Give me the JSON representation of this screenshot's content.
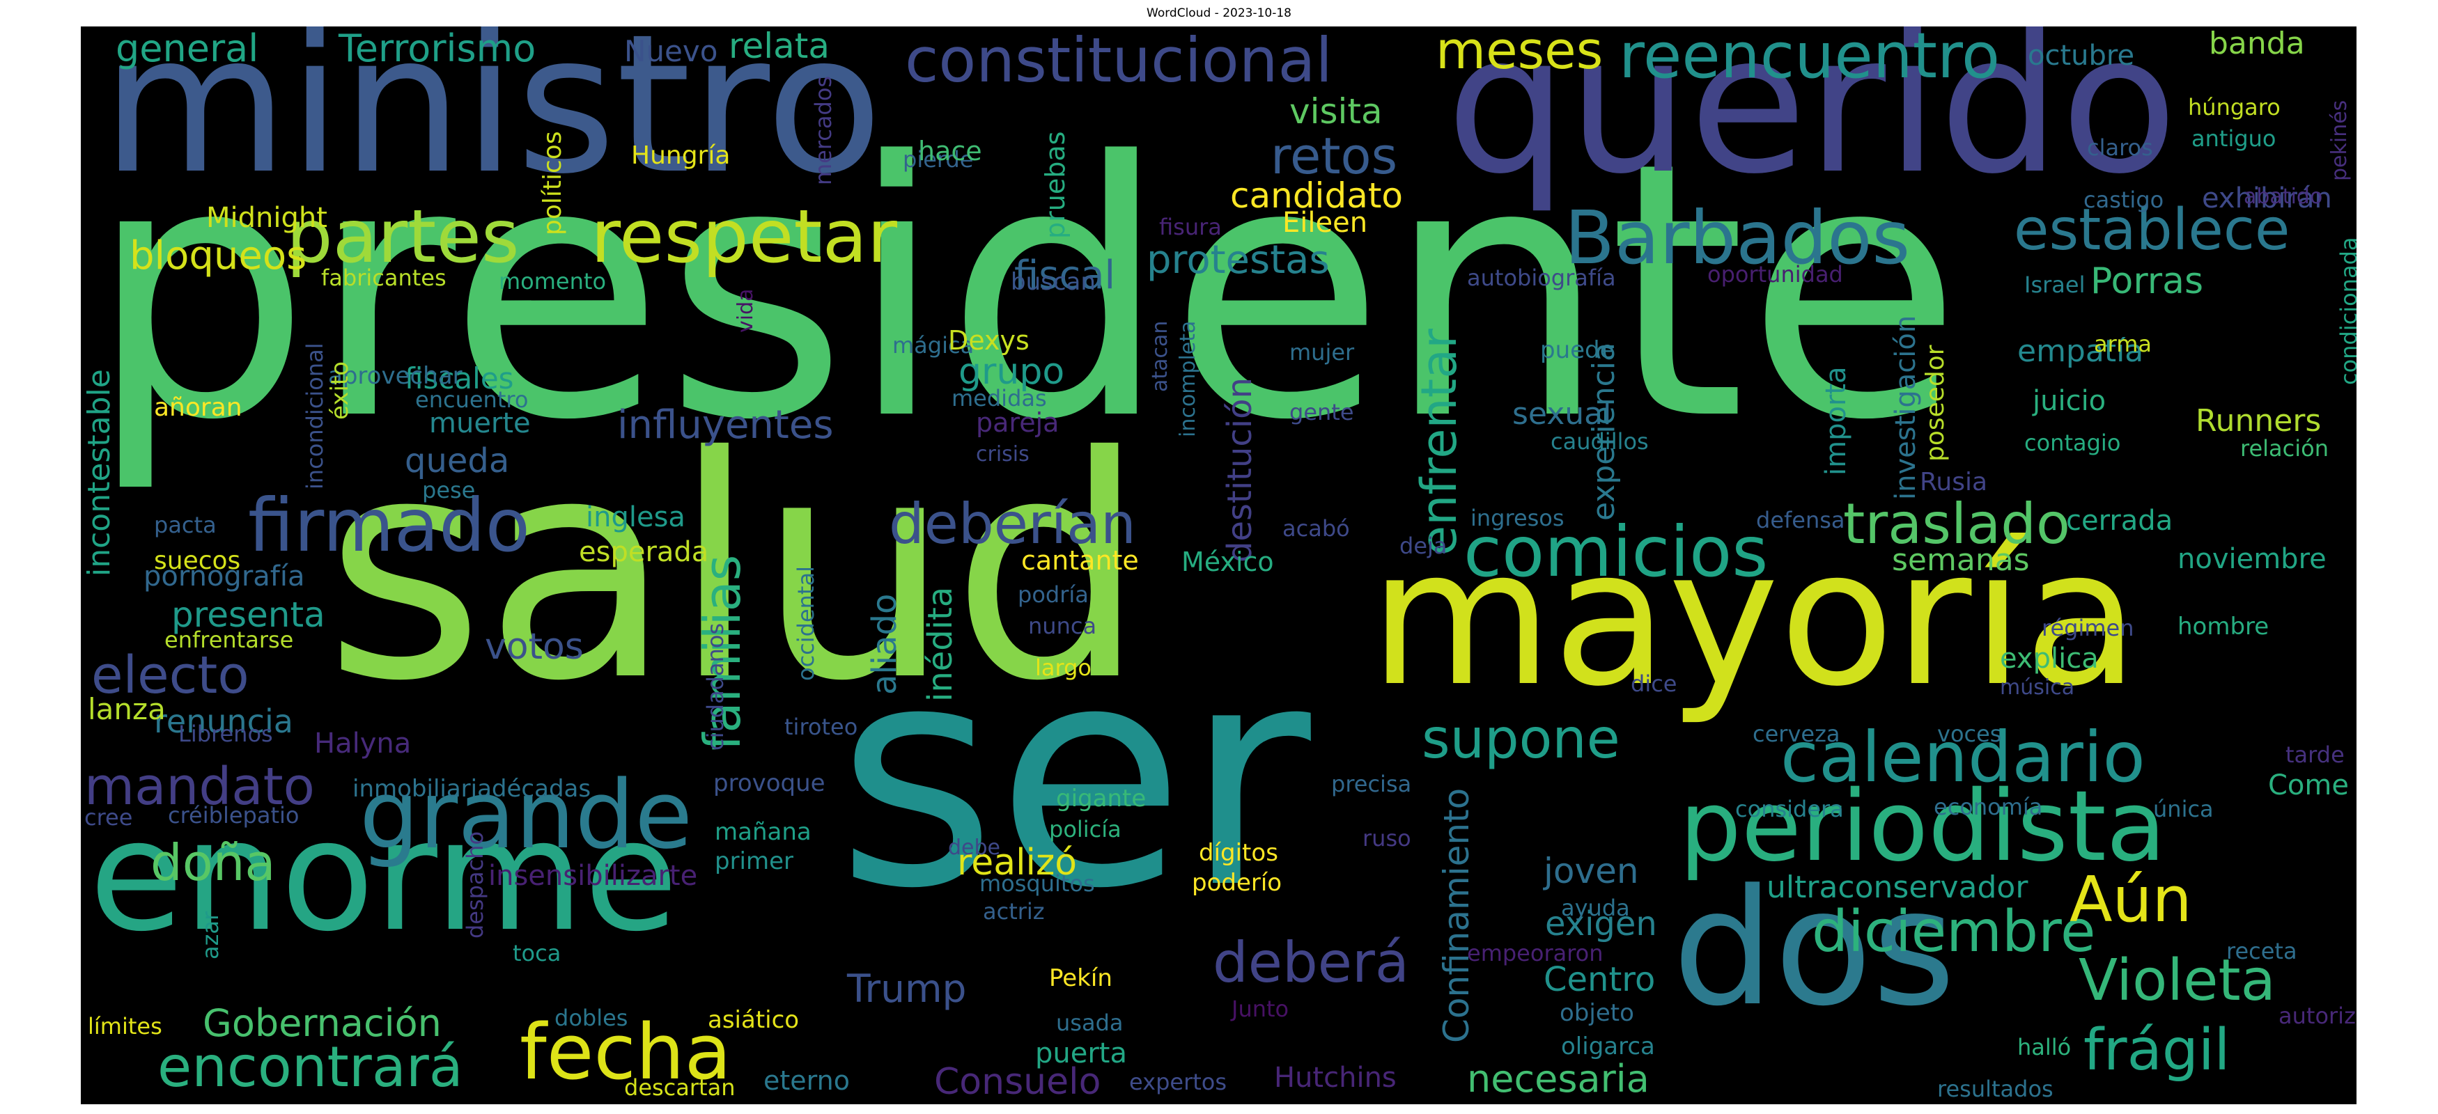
{
  "title": "WordCloud - 2023-10-18",
  "background": "#000000",
  "colormap": "viridis",
  "words": [
    {
      "text": "presidente",
      "color": "#4bc46a"
    },
    {
      "text": "ser",
      "color": "#1f8f8c"
    },
    {
      "text": "salud",
      "color": "#86d549"
    },
    {
      "text": "ministro",
      "color": "#3d5a8c"
    },
    {
      "text": "querido",
      "color": "#414487"
    },
    {
      "text": "mayoría",
      "color": "#d1e11c"
    },
    {
      "text": "enorme",
      "color": "#25a584"
    },
    {
      "text": "dos",
      "color": "#2c7a8e"
    },
    {
      "text": "periodista",
      "color": "#29af7f"
    },
    {
      "text": "grande",
      "color": "#2a7b8e"
    },
    {
      "text": "partes",
      "color": "#9fda3a"
    },
    {
      "text": "respetar",
      "color": "#c2df23"
    },
    {
      "text": "Barbados",
      "color": "#2b758e"
    },
    {
      "text": "calendario",
      "color": "#21918c"
    },
    {
      "text": "comicios",
      "color": "#20a486"
    },
    {
      "text": "firmado",
      "color": "#3a548c"
    },
    {
      "text": "fecha",
      "color": "#dde318"
    },
    {
      "text": "constitucional",
      "color": "#3e4a89"
    },
    {
      "text": "reencuentro",
      "color": "#21918c"
    },
    {
      "text": "establece",
      "color": "#2a788e"
    },
    {
      "text": "diciembre",
      "color": "#2db27d"
    },
    {
      "text": "Violeta",
      "color": "#35b779"
    },
    {
      "text": "frágil",
      "color": "#22a884"
    },
    {
      "text": "Aún",
      "color": "#e4e419"
    },
    {
      "text": "encontrará",
      "color": "#2ab07f"
    },
    {
      "text": "deberían",
      "color": "#3b528b"
    },
    {
      "text": "traslado",
      "color": "#54c568"
    },
    {
      "text": "mandato",
      "color": "#433e85"
    },
    {
      "text": "electo",
      "color": "#3e4c8a"
    },
    {
      "text": "doña",
      "color": "#58c765"
    },
    {
      "text": "familias",
      "color": "#2ab07f"
    },
    {
      "text": "deberá",
      "color": "#414487"
    },
    {
      "text": "supone",
      "color": "#1f9e89"
    },
    {
      "text": "enfrentar",
      "color": "#22a785"
    },
    {
      "text": "meses",
      "color": "#d8e219"
    },
    {
      "text": "retos",
      "color": "#375b8d"
    },
    {
      "text": "influyentes",
      "color": "#3b528b"
    },
    {
      "text": "Confinamiento",
      "color": "#2c728e"
    },
    {
      "text": "destitución",
      "color": "#424086"
    },
    {
      "text": "Trump",
      "color": "#3b518b"
    },
    {
      "text": "Consuelo",
      "color": "#482878"
    },
    {
      "text": "Gobernación",
      "color": "#48c16e"
    },
    {
      "text": "necesaria",
      "color": "#42be71"
    },
    {
      "text": "realizó",
      "color": "#e1e418"
    },
    {
      "text": "exigen",
      "color": "#26828e"
    },
    {
      "text": "Centro",
      "color": "#20928c"
    },
    {
      "text": "joven",
      "color": "#2e6e8e"
    },
    {
      "text": "ultraconservador",
      "color": "#1fa088"
    },
    {
      "text": "semanas",
      "color": "#5ec962"
    },
    {
      "text": "cerrada",
      "color": "#22a884"
    },
    {
      "text": "noviembre",
      "color": "#21a685"
    },
    {
      "text": "Runners",
      "color": "#b0dd2f"
    },
    {
      "text": "juicio",
      "color": "#2ab07f"
    },
    {
      "text": "empatía",
      "color": "#23898e"
    },
    {
      "text": "Porras",
      "color": "#38b977"
    },
    {
      "text": "sexual",
      "color": "#2e6f8e"
    },
    {
      "text": "experiencia",
      "color": "#2a788e"
    },
    {
      "text": "investigación",
      "color": "#2c738e"
    },
    {
      "text": "importa",
      "color": "#21918c"
    },
    {
      "text": "poseedor",
      "color": "#b8de29"
    },
    {
      "text": "protestas",
      "color": "#26828e"
    },
    {
      "text": "fiscal",
      "color": "#31668e"
    },
    {
      "text": "grupo",
      "color": "#1f9a8a"
    },
    {
      "text": "candidato",
      "color": "#fde725"
    },
    {
      "text": "visita",
      "color": "#5ec962"
    },
    {
      "text": "bloqueos",
      "color": "#d5e21a"
    },
    {
      "text": "fiscales",
      "color": "#1f9e89"
    },
    {
      "text": "queda",
      "color": "#355f8d"
    },
    {
      "text": "muerte",
      "color": "#24878e"
    },
    {
      "text": "presenta",
      "color": "#1f9a8a"
    },
    {
      "text": "votos",
      "color": "#3b528b"
    },
    {
      "text": "renuncia",
      "color": "#2a778e"
    },
    {
      "text": "lanza",
      "color": "#b5de2b"
    },
    {
      "text": "Halyna",
      "color": "#472a7a"
    },
    {
      "text": "insensibilizarte",
      "color": "#482173"
    },
    {
      "text": "inmobiliariadécadas",
      "color": "#2c738e"
    },
    {
      "text": "general",
      "color": "#21a685"
    },
    {
      "text": "Terrorismo",
      "color": "#1fa088"
    },
    {
      "text": "Nuevo",
      "color": "#3b528b"
    },
    {
      "text": "relata",
      "color": "#27ad81"
    },
    {
      "text": "octubre",
      "color": "#29798e"
    },
    {
      "text": "banda",
      "color": "#86d549"
    },
    {
      "text": "húngaro",
      "color": "#c2df23"
    },
    {
      "text": "antiguo",
      "color": "#1f9e89"
    },
    {
      "text": "claros",
      "color": "#34608d"
    },
    {
      "text": "castigo",
      "color": "#31688e"
    },
    {
      "text": "exhibirán",
      "color": "#3e4989"
    },
    {
      "text": "abatido",
      "color": "#46317e"
    },
    {
      "text": "pekinés",
      "color": "#472f7d"
    },
    {
      "text": "Hungría",
      "color": "#e5e419"
    },
    {
      "text": "políticos",
      "color": "#cde11d"
    },
    {
      "text": "mercados",
      "color": "#443b84"
    },
    {
      "text": "pierde",
      "color": "#33638d"
    },
    {
      "text": "hace",
      "color": "#3fbc73"
    },
    {
      "text": "pruebas",
      "color": "#26ad81"
    },
    {
      "text": "Midnight",
      "color": "#d0e11c"
    },
    {
      "text": "fisura",
      "color": "#482475"
    },
    {
      "text": "Eileen",
      "color": "#fde725"
    },
    {
      "text": "fabricantes",
      "color": "#b8de29"
    },
    {
      "text": "momento",
      "color": "#29af7f"
    },
    {
      "text": "vida",
      "color": "#471365"
    },
    {
      "text": "buscan",
      "color": "#39558c"
    },
    {
      "text": "autobiografía",
      "color": "#3e4a89"
    },
    {
      "text": "oportunidad",
      "color": "#481f70"
    },
    {
      "text": "Israel",
      "color": "#26828e"
    },
    {
      "text": "arma",
      "color": "#c8e020"
    },
    {
      "text": "condicionada",
      "color": "#22a785"
    },
    {
      "text": "relación",
      "color": "#3dbc74"
    },
    {
      "text": "contagio",
      "color": "#26ad81"
    },
    {
      "text": "Rusia",
      "color": "#414487"
    },
    {
      "text": "ingresos",
      "color": "#2e6f8e"
    },
    {
      "text": "defensa",
      "color": "#365c8d"
    },
    {
      "text": "deja",
      "color": "#3e4989"
    },
    {
      "text": "acabó",
      "color": "#3e4989"
    },
    {
      "text": "aprovechar",
      "color": "#2e6e8e"
    },
    {
      "text": "éxito",
      "color": "#b5de2b"
    },
    {
      "text": "incondicional",
      "color": "#3b528b"
    },
    {
      "text": "añoran",
      "color": "#fde725"
    },
    {
      "text": "encuentro",
      "color": "#2c728e"
    },
    {
      "text": "pese",
      "color": "#2a788e"
    },
    {
      "text": "pacta",
      "color": "#34608d"
    },
    {
      "text": "incontestable",
      "color": "#20a486"
    },
    {
      "text": "inglesa",
      "color": "#1f9a8a"
    },
    {
      "text": "esperada",
      "color": "#c0df25"
    },
    {
      "text": "suecos",
      "color": "#d5e21a"
    },
    {
      "text": "pornografía",
      "color": "#31688e"
    },
    {
      "text": "enfrentarse",
      "color": "#b5de2b"
    },
    {
      "text": "Librenos",
      "color": "#3e4989"
    },
    {
      "text": "créiblepatio",
      "color": "#3b528b"
    },
    {
      "text": "cree",
      "color": "#3e4a89"
    },
    {
      "text": "despacho",
      "color": "#443983"
    },
    {
      "text": "azar",
      "color": "#1f9a8a"
    },
    {
      "text": "toca",
      "color": "#1f9a8a"
    },
    {
      "text": "dobles",
      "color": "#2a768e"
    },
    {
      "text": "límites",
      "color": "#e2e418"
    },
    {
      "text": "asiático",
      "color": "#e5e419"
    },
    {
      "text": "descartan",
      "color": "#d5e21a"
    },
    {
      "text": "eterno",
      "color": "#2a788e"
    },
    {
      "text": "usada",
      "color": "#2e6e8e"
    },
    {
      "text": "puerta",
      "color": "#22a785"
    },
    {
      "text": "expertos",
      "color": "#3e4c8a"
    },
    {
      "text": "Hutchins",
      "color": "#482677"
    },
    {
      "text": "Junto",
      "color": "#471164"
    },
    {
      "text": "Pekín",
      "color": "#fde725"
    },
    {
      "text": "ruso",
      "color": "#443983"
    },
    {
      "text": "dígitos",
      "color": "#fde725"
    },
    {
      "text": "poderío",
      "color": "#fde725"
    },
    {
      "text": "gigante",
      "color": "#38b977"
    },
    {
      "text": "policía",
      "color": "#2db27d"
    },
    {
      "text": "debe",
      "color": "#3e4989"
    },
    {
      "text": "mosquitos",
      "color": "#2e6e8e"
    },
    {
      "text": "actriz",
      "color": "#34608d"
    },
    {
      "text": "mañana",
      "color": "#1fa088"
    },
    {
      "text": "primer",
      "color": "#21918c"
    },
    {
      "text": "provoque",
      "color": "#3b528b"
    },
    {
      "text": "precisa",
      "color": "#31688e"
    },
    {
      "text": "ciudadanos",
      "color": "#3e4989"
    },
    {
      "text": "occidental",
      "color": "#2c728e"
    },
    {
      "text": "tiroteo",
      "color": "#39558c"
    },
    {
      "text": "aliado",
      "color": "#2a788e"
    },
    {
      "text": "inédita",
      "color": "#27ad81"
    },
    {
      "text": "podría",
      "color": "#33638d"
    },
    {
      "text": "nunca",
      "color": "#3e4a89"
    },
    {
      "text": "largo",
      "color": "#e5e419"
    },
    {
      "text": "dice",
      "color": "#3e4a89"
    },
    {
      "text": "cantante",
      "color": "#fde725"
    },
    {
      "text": "México",
      "color": "#26ad81"
    },
    {
      "text": "pareja",
      "color": "#482878"
    },
    {
      "text": "crisis",
      "color": "#3e4989"
    },
    {
      "text": "medidas",
      "color": "#2e6e8e"
    },
    {
      "text": "mágica",
      "color": "#2e6e8e"
    },
    {
      "text": "Dexys",
      "color": "#c8e020"
    },
    {
      "text": "atacan",
      "color": "#3b528b"
    },
    {
      "text": "incompleta",
      "color": "#2c728e"
    },
    {
      "text": "mujer",
      "color": "#2e6e8e"
    },
    {
      "text": "gente",
      "color": "#3e4a89"
    },
    {
      "text": "puede",
      "color": "#2a788e"
    },
    {
      "text": "caudillos",
      "color": "#26828e"
    },
    {
      "text": "régimen",
      "color": "#3e4a89"
    },
    {
      "text": "hombre",
      "color": "#27ad81"
    },
    {
      "text": "música",
      "color": "#3e4989"
    },
    {
      "text": "explica",
      "color": "#3dbc74"
    },
    {
      "text": "cerveza",
      "color": "#2e6e8e"
    },
    {
      "text": "voces",
      "color": "#2c738e"
    },
    {
      "text": "tarde",
      "color": "#46317e"
    },
    {
      "text": "Come",
      "color": "#2ab07f"
    },
    {
      "text": "considera",
      "color": "#26828e"
    },
    {
      "text": "economía",
      "color": "#2e6e8e"
    },
    {
      "text": "única",
      "color": "#2c728e"
    },
    {
      "text": "empeoraron",
      "color": "#482173"
    },
    {
      "text": "receta",
      "color": "#2e6e8e"
    },
    {
      "text": "autorizadas",
      "color": "#482878"
    },
    {
      "text": "objeto",
      "color": "#2e6e8e"
    },
    {
      "text": "ayuda",
      "color": "#2c728e"
    },
    {
      "text": "oligarca",
      "color": "#26828e"
    },
    {
      "text": "halló",
      "color": "#2db27d"
    },
    {
      "text": "resultados",
      "color": "#2c728e"
    }
  ]
}
